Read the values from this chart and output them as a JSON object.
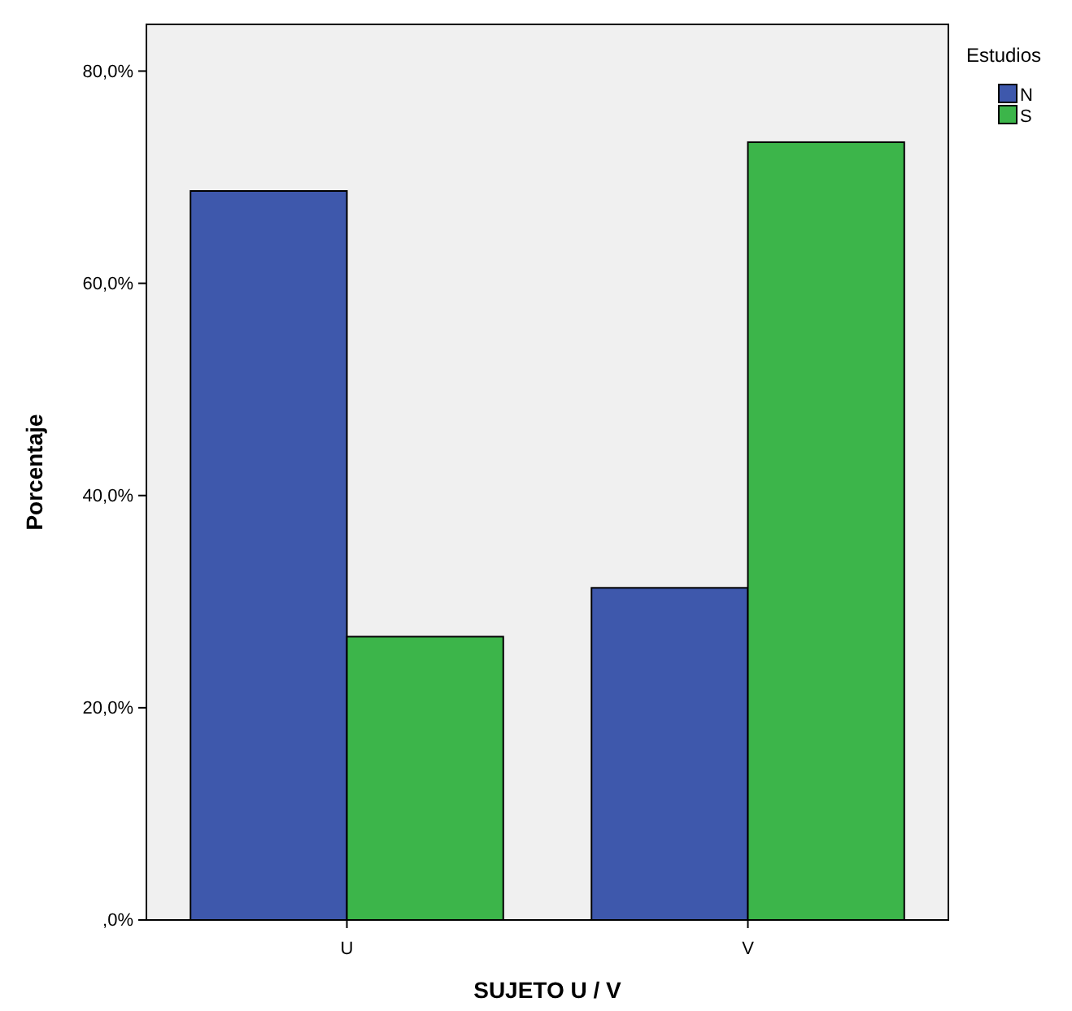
{
  "chart_data": {
    "type": "bar",
    "xlabel": "SUJETO U / V",
    "ylabel": "Porcentaje",
    "legend_title": "Estudios",
    "categories": [
      "U",
      "V"
    ],
    "series": [
      {
        "name": "N",
        "color": "#3e58ac",
        "values": [
          68.7,
          31.3
        ]
      },
      {
        "name": "S",
        "color": "#3cb54a",
        "values": [
          26.7,
          73.3
        ]
      }
    ],
    "ylim": [
      0,
      84.4
    ],
    "yticks": [
      {
        "value": 0,
        "label": ",0%"
      },
      {
        "value": 20,
        "label": "20,0%"
      },
      {
        "value": 40,
        "label": "40,0%"
      },
      {
        "value": 60,
        "label": "60,0%"
      },
      {
        "value": 80,
        "label": "80,0%"
      }
    ],
    "grid": false,
    "legend": "top right"
  }
}
